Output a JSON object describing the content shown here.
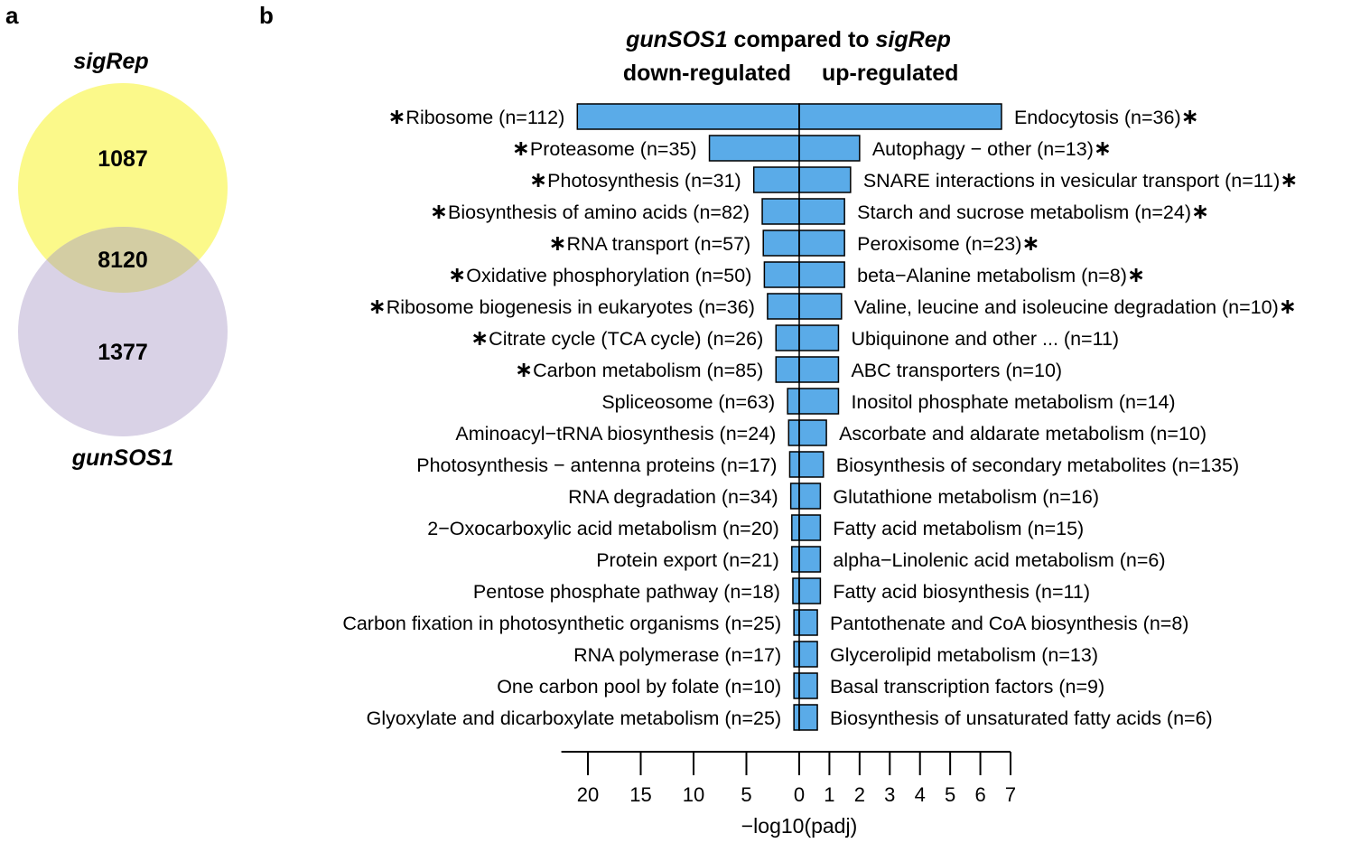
{
  "panel_a": {
    "letter": "a",
    "set1": {
      "name": "sigRep",
      "unique": "1087",
      "color": "#fbf98a"
    },
    "set2": {
      "name": "gunSOS1",
      "unique": "1377",
      "color": "#d9d2e6"
    },
    "overlap": "8120",
    "overlap_color": "#d3cda3"
  },
  "panel_b": {
    "letter": "b",
    "title_main": "gunSOS1",
    "title_rest": " compared to ",
    "title_ref": "sigRep",
    "down_header": "down-regulated",
    "up_header": "up-regulated"
  },
  "chart_data": {
    "type": "bar",
    "orientation": "horizontal-diverging",
    "bar_color": "#5aabe8",
    "xlabel": "−log10(padj)",
    "left_ticks": [
      "20",
      "15",
      "10",
      "5"
    ],
    "zero_tick": "0",
    "right_ticks": [
      "1",
      "2",
      "3",
      "4",
      "5",
      "6",
      "7"
    ],
    "left_xlim": [
      0,
      20
    ],
    "right_xlim": [
      0,
      7
    ],
    "star_symbol": "∗",
    "rows": [
      {
        "down": {
          "label": "Ribosome (n=112)",
          "value": 21,
          "star": true
        },
        "up": {
          "label": "Endocytosis (n=36)",
          "value": 6.7,
          "star": true
        }
      },
      {
        "down": {
          "label": "Proteasome (n=35)",
          "value": 8.5,
          "star": true
        },
        "up": {
          "label": "Autophagy − other (n=13)",
          "value": 2.0,
          "star": true
        }
      },
      {
        "down": {
          "label": "Photosynthesis (n=31)",
          "value": 4.3,
          "star": true
        },
        "up": {
          "label": "SNARE interactions in vesicular transport (n=11)",
          "value": 1.7,
          "star": true
        }
      },
      {
        "down": {
          "label": "Biosynthesis of amino acids (n=82)",
          "value": 3.5,
          "star": true
        },
        "up": {
          "label": "Starch and sucrose metabolism (n=24)",
          "value": 1.5,
          "star": true
        }
      },
      {
        "down": {
          "label": "RNA transport (n=57)",
          "value": 3.4,
          "star": true
        },
        "up": {
          "label": "Peroxisome (n=23)",
          "value": 1.5,
          "star": true
        }
      },
      {
        "down": {
          "label": "Oxidative phosphorylation (n=50)",
          "value": 3.3,
          "star": true
        },
        "up": {
          "label": "beta−Alanine metabolism (n=8)",
          "value": 1.5,
          "star": true
        }
      },
      {
        "down": {
          "label": "Ribosome biogenesis in eukaryotes (n=36)",
          "value": 3.0,
          "star": true
        },
        "up": {
          "label": "Valine, leucine and isoleucine degradation (n=10)",
          "value": 1.4,
          "star": true
        }
      },
      {
        "down": {
          "label": "Citrate cycle (TCA cycle) (n=26)",
          "value": 2.2,
          "star": true
        },
        "up": {
          "label": "Ubiquinone and other ... (n=11)",
          "value": 1.3,
          "star": false
        }
      },
      {
        "down": {
          "label": "Carbon metabolism (n=85)",
          "value": 2.2,
          "star": true
        },
        "up": {
          "label": "ABC transporters (n=10)",
          "value": 1.3,
          "star": false
        }
      },
      {
        "down": {
          "label": "Spliceosome (n=63)",
          "value": 1.1,
          "star": false
        },
        "up": {
          "label": "Inositol phosphate metabolism (n=14)",
          "value": 1.3,
          "star": false
        }
      },
      {
        "down": {
          "label": "Aminoacyl−tRNA biosynthesis (n=24)",
          "value": 1.0,
          "star": false
        },
        "up": {
          "label": "Ascorbate and aldarate metabolism (n=10)",
          "value": 0.9,
          "star": false
        }
      },
      {
        "down": {
          "label": "Photosynthesis − antenna proteins (n=17)",
          "value": 0.9,
          "star": false
        },
        "up": {
          "label": "Biosynthesis of secondary metabolites (n=135)",
          "value": 0.8,
          "star": false
        }
      },
      {
        "down": {
          "label": "RNA degradation (n=34)",
          "value": 0.8,
          "star": false
        },
        "up": {
          "label": "Glutathione metabolism (n=16)",
          "value": 0.7,
          "star": false
        }
      },
      {
        "down": {
          "label": "2−Oxocarboxylic acid metabolism (n=20)",
          "value": 0.7,
          "star": false
        },
        "up": {
          "label": "Fatty acid metabolism (n=15)",
          "value": 0.7,
          "star": false
        }
      },
      {
        "down": {
          "label": "Protein export (n=21)",
          "value": 0.7,
          "star": false
        },
        "up": {
          "label": "alpha−Linolenic acid metabolism (n=6)",
          "value": 0.7,
          "star": false
        }
      },
      {
        "down": {
          "label": "Pentose phosphate pathway (n=18)",
          "value": 0.6,
          "star": false
        },
        "up": {
          "label": "Fatty acid biosynthesis (n=11)",
          "value": 0.7,
          "star": false
        }
      },
      {
        "down": {
          "label": "Carbon fixation in photosynthetic organisms (n=25)",
          "value": 0.5,
          "star": false
        },
        "up": {
          "label": "Pantothenate and CoA biosynthesis (n=8)",
          "value": 0.6,
          "star": false
        }
      },
      {
        "down": {
          "label": "RNA polymerase (n=17)",
          "value": 0.5,
          "star": false
        },
        "up": {
          "label": "Glycerolipid metabolism (n=13)",
          "value": 0.6,
          "star": false
        }
      },
      {
        "down": {
          "label": "One carbon pool by folate (n=10)",
          "value": 0.5,
          "star": false
        },
        "up": {
          "label": "Basal transcription factors (n=9)",
          "value": 0.6,
          "star": false
        }
      },
      {
        "down": {
          "label": "Glyoxylate and dicarboxylate metabolism (n=25)",
          "value": 0.5,
          "star": false
        },
        "up": {
          "label": "Biosynthesis of unsaturated fatty acids (n=6)",
          "value": 0.6,
          "star": false
        }
      }
    ]
  }
}
